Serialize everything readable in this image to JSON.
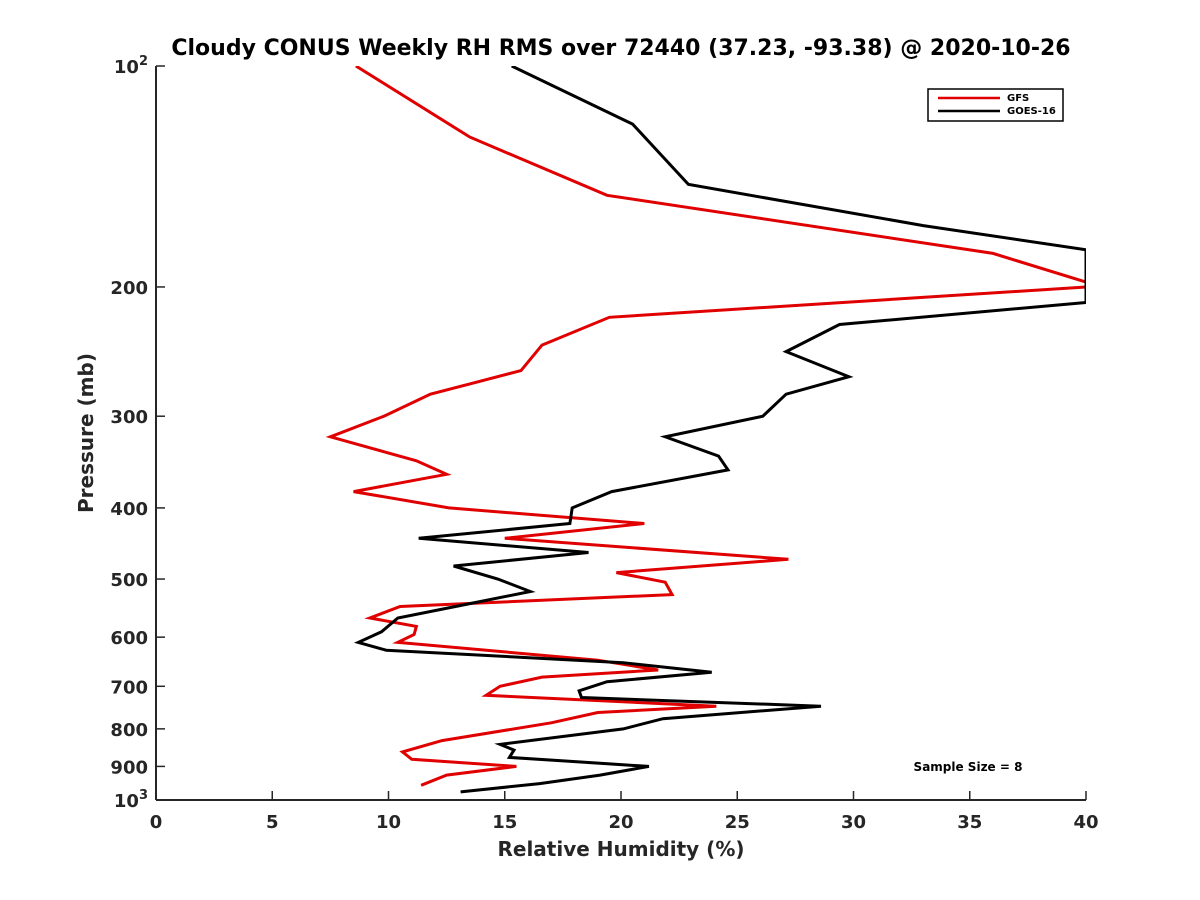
{
  "chart_data": {
    "type": "line",
    "title": "Cloudy CONUS Weekly RH RMS over 72440 (37.23, -93.38) @ 2020-10-26",
    "xlabel": "Relative Humidity (%)",
    "ylabel": "Pressure (mb)",
    "xlim": [
      0,
      40
    ],
    "ylim": [
      100,
      1000
    ],
    "y_scale": "log",
    "y_reversed": true,
    "grid": false,
    "legend_position": "top-right",
    "x_ticks": [
      0,
      5,
      10,
      15,
      20,
      25,
      30,
      35,
      40
    ],
    "y_ticks": [
      {
        "value": 100,
        "base": "10",
        "exp": "2"
      },
      {
        "value": 200,
        "label": "200"
      },
      {
        "value": 300,
        "label": "300"
      },
      {
        "value": 400,
        "label": "400"
      },
      {
        "value": 500,
        "label": "500"
      },
      {
        "value": 600,
        "label": "600"
      },
      {
        "value": 700,
        "label": "700"
      },
      {
        "value": 800,
        "label": "800"
      },
      {
        "value": 900,
        "label": "900"
      },
      {
        "value": 1000,
        "base": "10",
        "exp": "3"
      }
    ],
    "annotation": "Sample Size = 8",
    "series": [
      {
        "name": "GFS",
        "color": "#e00000",
        "points": [
          [
            8.6,
            100
          ],
          [
            13.5,
            125
          ],
          [
            19.4,
            150
          ],
          [
            36.0,
            180
          ],
          [
            40.0,
            197
          ],
          [
            40.0,
            200
          ],
          [
            19.5,
            220
          ],
          [
            16.6,
            240
          ],
          [
            15.7,
            260
          ],
          [
            11.8,
            280
          ],
          [
            9.8,
            300
          ],
          [
            7.5,
            320
          ],
          [
            11.2,
            345
          ],
          [
            12.5,
            360
          ],
          [
            8.5,
            380
          ],
          [
            12.6,
            400
          ],
          [
            21.0,
            420
          ],
          [
            15.0,
            440
          ],
          [
            27.2,
            470
          ],
          [
            19.8,
            490
          ],
          [
            21.9,
            505
          ],
          [
            22.2,
            525
          ],
          [
            10.5,
            545
          ],
          [
            9.2,
            565
          ],
          [
            11.2,
            580
          ],
          [
            11.1,
            595
          ],
          [
            10.4,
            610
          ],
          [
            19.0,
            645
          ],
          [
            21.6,
            665
          ],
          [
            16.6,
            680
          ],
          [
            14.8,
            700
          ],
          [
            14.2,
            720
          ],
          [
            24.1,
            745
          ],
          [
            19.0,
            760
          ],
          [
            17.0,
            785
          ],
          [
            12.3,
            830
          ],
          [
            10.6,
            860
          ],
          [
            11.0,
            880
          ],
          [
            15.5,
            900
          ],
          [
            12.5,
            925
          ],
          [
            11.4,
            955
          ]
        ]
      },
      {
        "name": "GOES-16",
        "color": "#000000",
        "points": [
          [
            15.3,
            100
          ],
          [
            20.5,
            120
          ],
          [
            22.9,
            145
          ],
          [
            33.0,
            165
          ],
          [
            40.0,
            178
          ],
          [
            40.0,
            210
          ],
          [
            29.4,
            225
          ],
          [
            27.1,
            245
          ],
          [
            29.8,
            265
          ],
          [
            27.1,
            280
          ],
          [
            26.1,
            300
          ],
          [
            21.9,
            320
          ],
          [
            24.2,
            340
          ],
          [
            24.6,
            355
          ],
          [
            19.6,
            380
          ],
          [
            17.9,
            400
          ],
          [
            17.8,
            420
          ],
          [
            11.3,
            440
          ],
          [
            18.6,
            460
          ],
          [
            12.8,
            480
          ],
          [
            14.7,
            500
          ],
          [
            16.1,
            520
          ],
          [
            13.5,
            540
          ],
          [
            10.4,
            565
          ],
          [
            9.7,
            590
          ],
          [
            8.7,
            610
          ],
          [
            9.9,
            625
          ],
          [
            20.1,
            650
          ],
          [
            23.9,
            670
          ],
          [
            19.4,
            690
          ],
          [
            18.2,
            710
          ],
          [
            18.3,
            725
          ],
          [
            28.6,
            745
          ],
          [
            21.8,
            775
          ],
          [
            20.1,
            800
          ],
          [
            14.8,
            840
          ],
          [
            15.4,
            855
          ],
          [
            15.2,
            875
          ],
          [
            21.2,
            900
          ],
          [
            19.1,
            925
          ],
          [
            16.5,
            950
          ],
          [
            13.1,
            975
          ]
        ]
      }
    ]
  }
}
